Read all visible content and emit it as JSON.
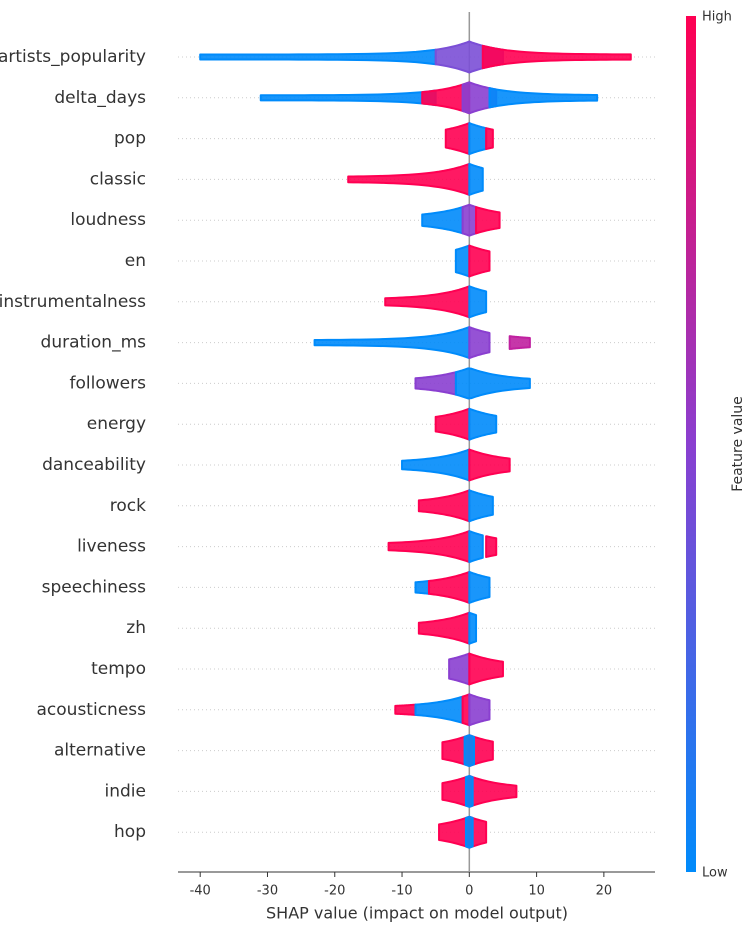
{
  "chart_data": {
    "type": "beeswarm",
    "xlabel": "SHAP value (impact on model output)",
    "xlim": [
      -43.3,
      27.6
    ],
    "xticks": [
      -40,
      -30,
      -20,
      -10,
      0,
      10,
      20
    ],
    "colorbar": {
      "label": "Feature value",
      "high": "High",
      "low": "Low",
      "colors": [
        "#008bfb",
        "#8a3fd0",
        "#ff0052"
      ]
    },
    "grid": true,
    "categories": [
      "artists_popularity",
      "delta_days",
      "pop",
      "classic",
      "loudness",
      "en",
      "instrumentalness",
      "duration_ms",
      "followers",
      "energy",
      "danceability",
      "rock",
      "liveness",
      "speechiness",
      "zh",
      "tempo",
      "acousticness",
      "alternative",
      "indie",
      "hop"
    ],
    "segments": [
      [
        {
          "range": [
            -40,
            -5
          ],
          "color": "#008bfb"
        },
        {
          "range": [
            -5,
            5
          ],
          "color": "#7b4fd6"
        },
        {
          "range": [
            2,
            24
          ],
          "color": "#ff0052"
        }
      ],
      [
        {
          "range": [
            -31,
            -5
          ],
          "color": "#008bfb"
        },
        {
          "range": [
            -7,
            0
          ],
          "color": "#ff0052"
        },
        {
          "range": [
            -1,
            4
          ],
          "color": "#8a3fd0"
        },
        {
          "range": [
            3,
            19
          ],
          "color": "#008bfb"
        }
      ],
      [
        {
          "range": [
            -3.5,
            0
          ],
          "color": "#ff0052"
        },
        {
          "range": [
            0,
            2.5
          ],
          "color": "#008bfb"
        },
        {
          "range": [
            2.5,
            3.5
          ],
          "color": "#ff0052"
        }
      ],
      [
        {
          "range": [
            -18,
            0
          ],
          "color": "#ff0052"
        },
        {
          "range": [
            0,
            2
          ],
          "color": "#008bfb"
        }
      ],
      [
        {
          "range": [
            -7,
            -1
          ],
          "color": "#008bfb"
        },
        {
          "range": [
            -1,
            1
          ],
          "color": "#8a3fd0"
        },
        {
          "range": [
            1,
            4.5
          ],
          "color": "#ff0052"
        }
      ],
      [
        {
          "range": [
            -2,
            0
          ],
          "color": "#008bfb"
        },
        {
          "range": [
            0,
            3
          ],
          "color": "#ff0052"
        }
      ],
      [
        {
          "range": [
            -12.5,
            0
          ],
          "color": "#ff0052"
        },
        {
          "range": [
            0,
            2.5
          ],
          "color": "#008bfb"
        }
      ],
      [
        {
          "range": [
            -23,
            0
          ],
          "color": "#008bfb"
        },
        {
          "range": [
            0,
            3
          ],
          "color": "#8a3fd0"
        },
        {
          "range": [
            6,
            9
          ],
          "color": "#c020a0"
        }
      ],
      [
        {
          "range": [
            -8,
            -2
          ],
          "color": "#8a3fd0"
        },
        {
          "range": [
            -2,
            9
          ],
          "color": "#008bfb"
        }
      ],
      [
        {
          "range": [
            -5,
            0
          ],
          "color": "#ff0052"
        },
        {
          "range": [
            0,
            4
          ],
          "color": "#008bfb"
        }
      ],
      [
        {
          "range": [
            -10,
            0
          ],
          "color": "#008bfb"
        },
        {
          "range": [
            0,
            6
          ],
          "color": "#ff0052"
        }
      ],
      [
        {
          "range": [
            -7.5,
            0
          ],
          "color": "#ff0052"
        },
        {
          "range": [
            0,
            3.5
          ],
          "color": "#008bfb"
        }
      ],
      [
        {
          "range": [
            -12,
            0
          ],
          "color": "#ff0052"
        },
        {
          "range": [
            0,
            2
          ],
          "color": "#008bfb"
        },
        {
          "range": [
            2.5,
            4
          ],
          "color": "#ff0052"
        }
      ],
      [
        {
          "range": [
            -8,
            -6
          ],
          "color": "#008bfb"
        },
        {
          "range": [
            -6,
            0
          ],
          "color": "#ff0052"
        },
        {
          "range": [
            0,
            3
          ],
          "color": "#008bfb"
        }
      ],
      [
        {
          "range": [
            -7.5,
            0
          ],
          "color": "#ff0052"
        },
        {
          "range": [
            0,
            1
          ],
          "color": "#008bfb"
        }
      ],
      [
        {
          "range": [
            -3,
            0
          ],
          "color": "#8a3fd0"
        },
        {
          "range": [
            0,
            5
          ],
          "color": "#ff0052"
        }
      ],
      [
        {
          "range": [
            -11,
            -8
          ],
          "color": "#ff0052"
        },
        {
          "range": [
            -8,
            -1
          ],
          "color": "#008bfb"
        },
        {
          "range": [
            -1,
            0
          ],
          "color": "#ff0052"
        },
        {
          "range": [
            0,
            3
          ],
          "color": "#8a3fd0"
        }
      ],
      [
        {
          "range": [
            -4,
            3.5
          ],
          "color": "#ff0052"
        },
        {
          "range": [
            -0.7,
            0.7
          ],
          "color": "#008bfb"
        }
      ],
      [
        {
          "range": [
            -4,
            7
          ],
          "color": "#ff0052"
        },
        {
          "range": [
            -0.5,
            0.5
          ],
          "color": "#008bfb"
        }
      ],
      [
        {
          "range": [
            -4.5,
            2.5
          ],
          "color": "#ff0052"
        },
        {
          "range": [
            -0.5,
            0.5
          ],
          "color": "#008bfb"
        }
      ]
    ]
  }
}
